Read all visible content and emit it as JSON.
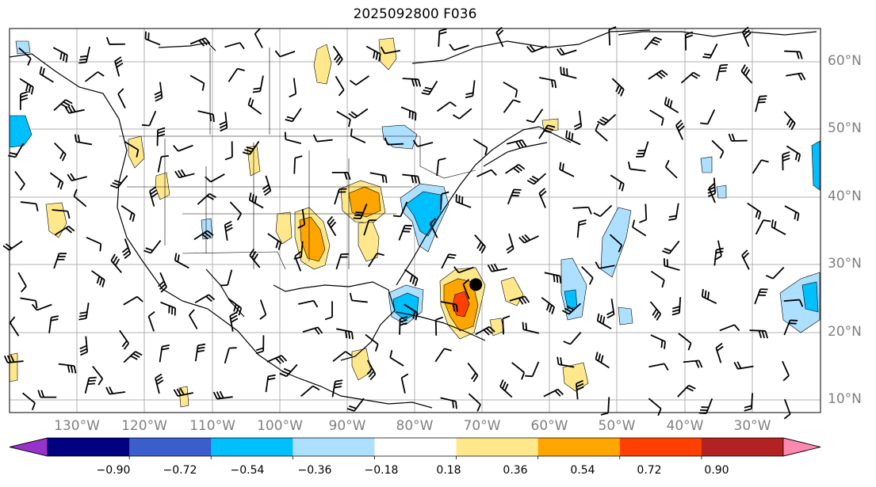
{
  "title": "2025092800 F036",
  "lat_labels": [
    "60°N",
    "50°N",
    "40°N",
    "30°N",
    "20°N",
    "10°N"
  ],
  "lon_labels": [
    "130°W",
    "120°W",
    "110°W",
    "100°W",
    "90°W",
    "80°W",
    "70°W",
    "60°W",
    "50°W",
    "40°W",
    "30°W"
  ],
  "colorbar": {
    "ticks": [
      "−0.90",
      "−0.72",
      "−0.54",
      "−0.36",
      "−0.18",
      "0.18",
      "0.36",
      "0.54",
      "0.72",
      "0.90"
    ],
    "colors": [
      "#9932cc",
      "#000080",
      "#3a5fcd",
      "#00bfff",
      "#addfff",
      "#ffffff",
      "#ffe88c",
      "#ffa500",
      "#ff4000",
      "#b22222",
      "#ff88b0"
    ],
    "extend": "both"
  },
  "colors": {
    "grid": "#b0b0b0",
    "coast": "#000000",
    "tick_text": "#808080"
  },
  "markers": [
    {
      "name": "storm-center",
      "lat": 27,
      "lon": -66
    }
  ]
}
